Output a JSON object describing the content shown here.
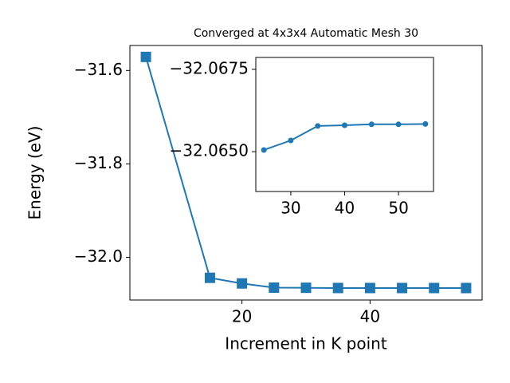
{
  "chart_data": [
    {
      "type": "line",
      "title": "Converged at 4x3x4 Automatic Mesh 30",
      "xlabel": "Increment in K point",
      "ylabel": "Energy (eV)",
      "x": [
        5,
        15,
        20,
        25,
        30,
        35,
        40,
        45,
        50,
        55
      ],
      "series": [
        {
          "color": "#1f77b4",
          "marker": "square",
          "values": [
            -31.571,
            -32.044,
            -32.056,
            -32.06505,
            -32.06534,
            -32.06578,
            -32.0658,
            -32.06583,
            -32.06583,
            -32.06584
          ]
        }
      ],
      "xlim": [
        2.5,
        57.5
      ],
      "ylim": [
        -32.0915,
        -31.5465
      ],
      "xticks": [
        20,
        40
      ],
      "yticks": [
        {
          "value": -32.0,
          "label": "−32.0"
        },
        {
          "value": -31.8,
          "label": "−31.8"
        },
        {
          "value": -31.6,
          "label": "−31.6"
        }
      ]
    },
    {
      "type": "line",
      "x": [
        25,
        30,
        35,
        40,
        45,
        50,
        55
      ],
      "series": [
        {
          "color": "#1f77b4",
          "marker": "circle",
          "values": [
            -32.06505,
            -32.06534,
            -32.06578,
            -32.0658,
            -32.06583,
            -32.06583,
            -32.06584
          ]
        }
      ],
      "xlim": [
        23.5,
        56.5
      ],
      "ylim": [
        -32.06379,
        -32.06786
      ],
      "xticks": [
        30,
        40,
        50
      ],
      "yticks": [
        {
          "value": -32.065,
          "label": "−32.0650"
        },
        {
          "value": -32.0675,
          "label": "−32.0675"
        }
      ]
    }
  ]
}
